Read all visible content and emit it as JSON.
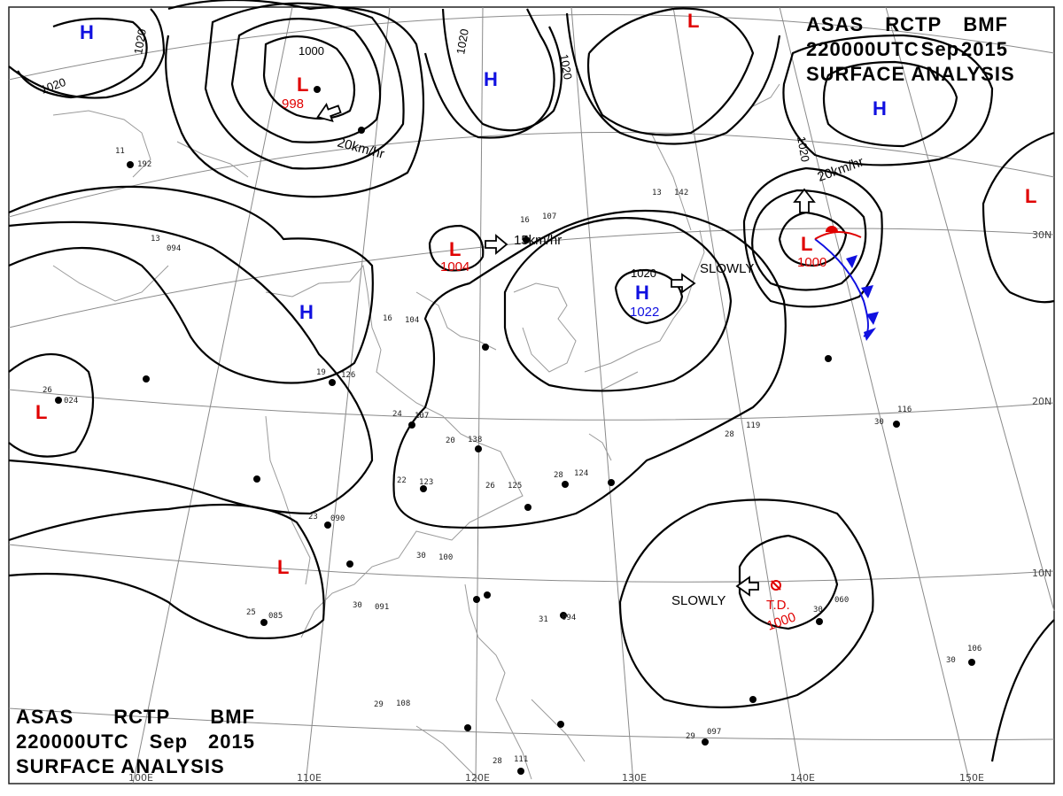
{
  "header": {
    "line1": [
      "ASAS",
      "RCTP",
      "BMF"
    ],
    "line2": [
      "220000UTC",
      "Sep",
      "2015"
    ],
    "line3": "SURFACE ANALYSIS"
  },
  "colors": {
    "high": "#1010e0",
    "low": "#e00000",
    "isobar": "#000000",
    "grid": "#888888",
    "coast": "#999999"
  },
  "longitude_labels": [
    "100E",
    "110E",
    "120E",
    "130E",
    "140E",
    "150E"
  ],
  "latitude_labels": [
    "30N",
    "20N",
    "10N"
  ],
  "pressure_systems": [
    {
      "type": "H",
      "kind": "high",
      "value": ""
    },
    {
      "type": "L",
      "kind": "low",
      "value": "998"
    },
    {
      "type": "H",
      "kind": "high",
      "value": ""
    },
    {
      "type": "L",
      "kind": "low",
      "value": ""
    },
    {
      "type": "H",
      "kind": "high",
      "value": ""
    },
    {
      "type": "L",
      "kind": "low",
      "value": "1004"
    },
    {
      "type": "H",
      "kind": "high",
      "value": ""
    },
    {
      "type": "H",
      "kind": "high",
      "value": "1022"
    },
    {
      "type": "L",
      "kind": "low",
      "value": "1000"
    },
    {
      "type": "L",
      "kind": "low",
      "value": ""
    },
    {
      "type": "L",
      "kind": "low",
      "value": ""
    },
    {
      "type": "L",
      "kind": "low",
      "value": ""
    }
  ],
  "isobar_labels": [
    "1020",
    "1000",
    "1020",
    "1020",
    "1020",
    "1020",
    "1020"
  ],
  "movements": [
    {
      "text": "20km/hr"
    },
    {
      "text": "15km/hr"
    },
    {
      "text": "SLOWLY"
    },
    {
      "text": "20km/hr"
    },
    {
      "text": "SLOWLY"
    }
  ],
  "tropical_depression": {
    "label": "T.D.",
    "pressure": "1000"
  },
  "station_samples": [
    {
      "t": "26",
      "p": "024"
    },
    {
      "t": "13",
      "p": "094"
    },
    {
      "t": "11",
      "p": "192"
    },
    {
      "t": "19",
      "p": "126"
    },
    {
      "t": "16",
      "p": "104"
    },
    {
      "t": "24",
      "p": "107"
    },
    {
      "t": "20",
      "p": "138"
    },
    {
      "t": "22",
      "p": "123"
    },
    {
      "t": "23",
      "p": "090"
    },
    {
      "t": "25",
      "p": "085"
    },
    {
      "t": "30",
      "p": "091"
    },
    {
      "t": "30",
      "p": "100"
    },
    {
      "t": "26",
      "p": "125"
    },
    {
      "t": "28",
      "p": "124"
    },
    {
      "t": "30",
      "p": "116"
    },
    {
      "t": "28",
      "p": "119"
    },
    {
      "t": "31",
      "p": "094"
    },
    {
      "t": "30",
      "p": "060"
    },
    {
      "t": "30",
      "p": "106"
    },
    {
      "t": "29",
      "p": "097"
    },
    {
      "t": "29",
      "p": "108"
    },
    {
      "t": "28",
      "p": "111"
    },
    {
      "t": "16",
      "p": "107"
    },
    {
      "t": "13",
      "p": "142"
    }
  ]
}
